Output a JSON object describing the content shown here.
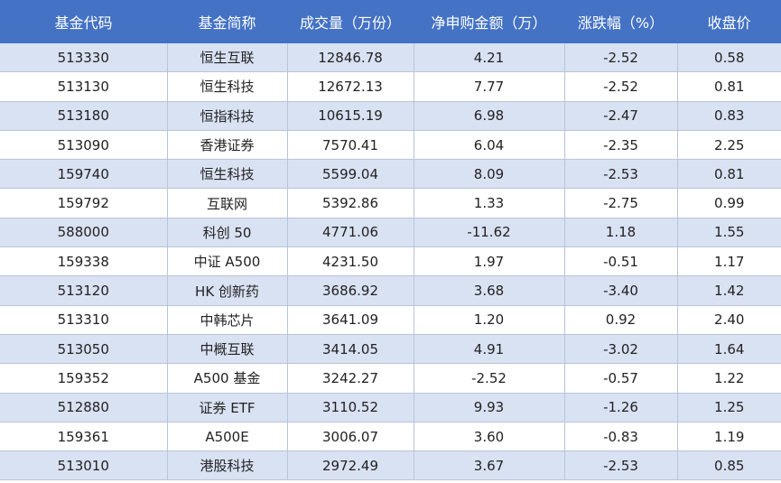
{
  "table": {
    "header": [
      "基金代码",
      "基金简称",
      "成交量（万份）",
      "净申购金额（万）",
      "涨跌幅（%）",
      "收盘价"
    ],
    "rows": [
      [
        "513330",
        "恒生互联",
        "12846.78",
        "4.21",
        "-2.52",
        "0.58"
      ],
      [
        "513130",
        "恒生科技",
        "12672.13",
        "7.77",
        "-2.52",
        "0.81"
      ],
      [
        "513180",
        "恒指科技",
        "10615.19",
        "6.98",
        "-2.47",
        "0.83"
      ],
      [
        "513090",
        "香港证券",
        "7570.41",
        "6.04",
        "-2.35",
        "2.25"
      ],
      [
        "159740",
        "恒生科技",
        "5599.04",
        "8.09",
        "-2.53",
        "0.81"
      ],
      [
        "159792",
        "互联网",
        "5392.86",
        "1.33",
        "-2.75",
        "0.99"
      ],
      [
        "588000",
        "科创 50",
        "4771.06",
        "-11.62",
        "1.18",
        "1.55"
      ],
      [
        "159338",
        "中证 A500",
        "4231.50",
        "1.97",
        "-0.51",
        "1.17"
      ],
      [
        "513120",
        "HK 创新药",
        "3686.92",
        "3.68",
        "-3.40",
        "1.42"
      ],
      [
        "513310",
        "中韩芯片",
        "3641.09",
        "1.20",
        "0.92",
        "2.40"
      ],
      [
        "513050",
        "中概互联",
        "3414.05",
        "4.91",
        "-3.02",
        "1.64"
      ],
      [
        "159352",
        "A500 基金",
        "3242.27",
        "-2.52",
        "-0.57",
        "1.22"
      ],
      [
        "512880",
        "证券 ETF",
        "3110.52",
        "9.93",
        "-1.26",
        "1.25"
      ],
      [
        "159361",
        "A500E",
        "3006.07",
        "3.60",
        "-0.83",
        "1.19"
      ],
      [
        "513010",
        "港股科技",
        "2972.49",
        "3.67",
        "-2.53",
        "0.85"
      ]
    ]
  }
}
